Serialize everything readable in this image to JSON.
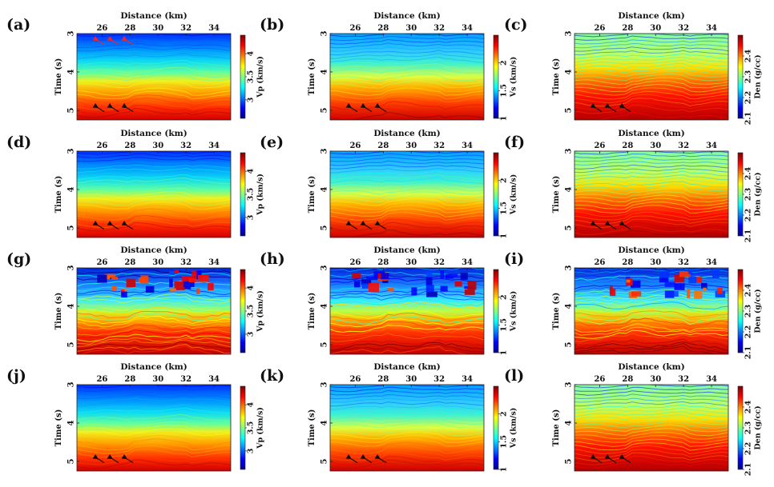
{
  "figure": {
    "colors": {
      "stops": [
        "#00008f",
        "#0000ff",
        "#0080ff",
        "#00ffff",
        "#80ff80",
        "#ffff00",
        "#ff8000",
        "#ff0000",
        "#800000"
      ]
    },
    "icons": [
      "layer-arrow-icon"
    ],
    "rows": [
      {
        "panels": [
          {
            "label": "(a)",
            "property": "Vp"
          },
          {
            "label": "(b)",
            "property": "Vs"
          },
          {
            "label": "(c)",
            "property": "Den"
          }
        ]
      },
      {
        "panels": [
          {
            "label": "(d)",
            "property": "Vp"
          },
          {
            "label": "(e)",
            "property": "Vs"
          },
          {
            "label": "(f)",
            "property": "Den"
          }
        ]
      },
      {
        "panels": [
          {
            "label": "(g)",
            "property": "Vp"
          },
          {
            "label": "(h)",
            "property": "Vs"
          },
          {
            "label": "(i)",
            "property": "Den"
          }
        ]
      },
      {
        "panels": [
          {
            "label": "(j)",
            "property": "Vp"
          },
          {
            "label": "(k)",
            "property": "Vs"
          },
          {
            "label": "(l)",
            "property": "Den"
          }
        ]
      }
    ]
  },
  "chart_data": [
    {
      "type": "heatmap",
      "panel": "(a)",
      "title": "",
      "xlabel": "Distance (km)",
      "ylabel": "Time (s)",
      "xticks": [
        "26",
        "28",
        "30",
        "32",
        "34"
      ],
      "yticks": [
        "3",
        "4",
        "5"
      ],
      "colorbar_label": "Vp (km/s)",
      "colorbar_ticks": [
        "3",
        "3.5",
        "4"
      ],
      "ylim": [
        3,
        5.25
      ],
      "xlim": [
        24.2,
        35.2
      ],
      "clim": [
        2.6,
        4.4
      ],
      "annotations": [
        "3 red arrows near 3.2 s",
        "3 black arrows near 4.95 s"
      ]
    },
    {
      "type": "heatmap",
      "panel": "(b)",
      "title": "",
      "xlabel": "Distance (km)",
      "ylabel": "Time (s)",
      "xticks": [
        "26",
        "28",
        "30",
        "32",
        "34"
      ],
      "yticks": [
        "3",
        "4",
        "5"
      ],
      "colorbar_label": "Vs (km/s)",
      "colorbar_ticks": [
        "1",
        "1.5",
        "2"
      ],
      "ylim": [
        3,
        5.25
      ],
      "xlim": [
        24.2,
        35.2
      ],
      "clim": [
        1,
        2.5
      ],
      "annotations": [
        "3 black arrows near 4.95 s"
      ]
    },
    {
      "type": "heatmap",
      "panel": "(c)",
      "title": "",
      "xlabel": "Distance (km)",
      "ylabel": "Time (s)",
      "xticks": [
        "26",
        "28",
        "30",
        "32",
        "34"
      ],
      "yticks": [
        "3",
        "4",
        "5"
      ],
      "colorbar_label": "Den (g/cc)",
      "colorbar_ticks": [
        "2.1",
        "2.2",
        "2.3",
        "2.4"
      ],
      "ylim": [
        3,
        5.25
      ],
      "xlim": [
        24.2,
        35.2
      ],
      "clim": [
        2.1,
        2.5
      ],
      "annotations": [
        "3 black arrows near 4.95 s"
      ]
    },
    {
      "type": "heatmap",
      "panel": "(d)",
      "title": "",
      "xlabel": "Distance (km)",
      "ylabel": "Time (s)",
      "xticks": [
        "26",
        "28",
        "30",
        "32",
        "34"
      ],
      "yticks": [
        "3",
        "4",
        "5"
      ],
      "colorbar_label": "Vp (km/s)",
      "colorbar_ticks": [
        "3",
        "3.5",
        "4"
      ],
      "ylim": [
        3,
        5.25
      ],
      "xlim": [
        24.2,
        35.2
      ],
      "clim": [
        2.6,
        4.4
      ],
      "annotations": [
        "3 black arrows near 4.95 s"
      ]
    },
    {
      "type": "heatmap",
      "panel": "(e)",
      "title": "",
      "xlabel": "Distance (km)",
      "ylabel": "Time (s)",
      "xticks": [
        "26",
        "28",
        "30",
        "32",
        "34"
      ],
      "yticks": [
        "3",
        "4",
        "5"
      ],
      "colorbar_label": "Vs (km/s)",
      "colorbar_ticks": [
        "1",
        "1.5",
        "2"
      ],
      "ylim": [
        3,
        5.25
      ],
      "xlim": [
        24.2,
        35.2
      ],
      "clim": [
        1,
        2.5
      ],
      "annotations": [
        "3 black arrows near 4.95 s"
      ]
    },
    {
      "type": "heatmap",
      "panel": "(f)",
      "title": "",
      "xlabel": "Distance (km)",
      "ylabel": "Time (s)",
      "xticks": [
        "26",
        "28",
        "30",
        "32",
        "34"
      ],
      "yticks": [
        "3",
        "4",
        "5"
      ],
      "colorbar_label": "Den (g/cc)",
      "colorbar_ticks": [
        "2.1",
        "2.2",
        "2.3",
        "2.4"
      ],
      "ylim": [
        3,
        5.25
      ],
      "xlim": [
        24.2,
        35.2
      ],
      "clim": [
        2.1,
        2.5
      ],
      "annotations": [
        "3 black arrows near 4.95 s"
      ]
    },
    {
      "type": "heatmap",
      "panel": "(g)",
      "title": "",
      "xlabel": "Distance (km)",
      "ylabel": "Time (s)",
      "xticks": [
        "26",
        "28",
        "30",
        "32",
        "34"
      ],
      "yticks": [
        "3",
        "4",
        "5"
      ],
      "colorbar_label": "Vp (km/s)",
      "colorbar_ticks": [
        "3",
        "3.5",
        "4"
      ],
      "ylim": [
        3,
        5.25
      ],
      "xlim": [
        24.2,
        35.2
      ],
      "clim": [
        2.6,
        4.4
      ],
      "annotations": []
    },
    {
      "type": "heatmap",
      "panel": "(h)",
      "title": "",
      "xlabel": "Distance (km)",
      "ylabel": "Time (s)",
      "xticks": [
        "26",
        "28",
        "30",
        "32",
        "34"
      ],
      "yticks": [
        "3",
        "4",
        "5"
      ],
      "colorbar_label": "Vs (km/s)",
      "colorbar_ticks": [
        "1",
        "1.5",
        "2"
      ],
      "ylim": [
        3,
        5.25
      ],
      "xlim": [
        24.2,
        35.2
      ],
      "clim": [
        1,
        2.5
      ],
      "annotations": []
    },
    {
      "type": "heatmap",
      "panel": "(i)",
      "title": "",
      "xlabel": "Distance (km)",
      "ylabel": "Time (s)",
      "xticks": [
        "26",
        "28",
        "30",
        "32",
        "34"
      ],
      "yticks": [
        "3",
        "4",
        "5"
      ],
      "colorbar_label": "Den (g/cc)",
      "colorbar_ticks": [
        "2.1",
        "2.2",
        "2.3",
        "2.4"
      ],
      "ylim": [
        3,
        5.25
      ],
      "xlim": [
        24.2,
        35.2
      ],
      "clim": [
        2.1,
        2.5
      ],
      "annotations": []
    },
    {
      "type": "heatmap",
      "panel": "(j)",
      "title": "",
      "xlabel": "Distance (km)",
      "ylabel": "Time (s)",
      "xticks": [
        "26",
        "28",
        "30",
        "32",
        "34"
      ],
      "yticks": [
        "3",
        "4",
        "5"
      ],
      "colorbar_label": "Vp (km/s)",
      "colorbar_ticks": [
        "3",
        "3.5",
        "4"
      ],
      "ylim": [
        3,
        5.25
      ],
      "xlim": [
        24.2,
        35.2
      ],
      "clim": [
        2.6,
        4.4
      ],
      "annotations": [
        "3 black arrows near 4.95 s"
      ]
    },
    {
      "type": "heatmap",
      "panel": "(k)",
      "title": "",
      "xlabel": "Distance (km)",
      "ylabel": "Time (s)",
      "xticks": [
        "26",
        "28",
        "30",
        "32",
        "34"
      ],
      "yticks": [
        "3",
        "4",
        "5"
      ],
      "colorbar_label": "Vs (km/s)",
      "colorbar_ticks": [
        "1",
        "1.5",
        "2"
      ],
      "ylim": [
        3,
        5.25
      ],
      "xlim": [
        24.2,
        35.2
      ],
      "clim": [
        1,
        2.5
      ],
      "annotations": [
        "3 black arrows near 4.95 s"
      ]
    },
    {
      "type": "heatmap",
      "panel": "(l)",
      "title": "",
      "xlabel": "Distance (km)",
      "ylabel": "Time (s)",
      "xticks": [
        "26",
        "28",
        "30",
        "32",
        "34"
      ],
      "yticks": [
        "3",
        "4",
        "5"
      ],
      "colorbar_label": "Den (g/cc)",
      "colorbar_ticks": [
        "2.1",
        "2.2",
        "2.3",
        "2.4"
      ],
      "ylim": [
        3,
        5.25
      ],
      "xlim": [
        24.2,
        35.2
      ],
      "clim": [
        2.1,
        2.5
      ],
      "annotations": [
        "3 black arrows near 4.95 s"
      ]
    }
  ]
}
